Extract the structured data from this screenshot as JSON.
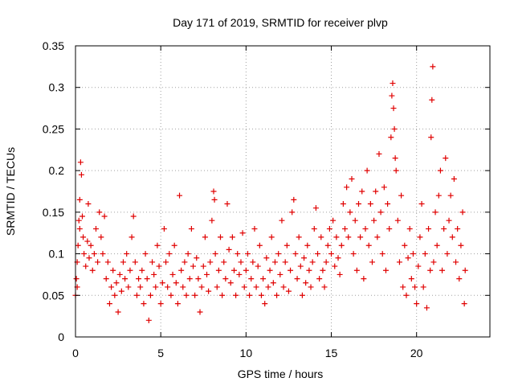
{
  "chart_data": {
    "type": "scatter",
    "title": "Day 171 of 2019, SRMTID for receiver plvp",
    "xlabel": "GPS time / hours",
    "ylabel": "SRMTID / TECUs",
    "xlim": [
      0,
      24.3
    ],
    "ylim": [
      0,
      0.35
    ],
    "xticks": [
      0,
      5,
      10,
      15,
      20
    ],
    "xtick_labels": [
      "0",
      "5",
      "10",
      "15",
      "20"
    ],
    "yticks": [
      0,
      0.05,
      0.1,
      0.15,
      0.2,
      0.25,
      0.3,
      0.35
    ],
    "ytick_labels": [
      "0",
      "0.05",
      "0.1",
      "0.15",
      "0.2",
      "0.25",
      "0.3",
      "0.35"
    ],
    "grid": true,
    "marker": "+",
    "color": "#e00000",
    "series": [
      {
        "name": "plvp",
        "points": [
          [
            0.0,
            0.05
          ],
          [
            0.05,
            0.07
          ],
          [
            0.1,
            0.09
          ],
          [
            0.1,
            0.06
          ],
          [
            0.15,
            0.11
          ],
          [
            0.2,
            0.14
          ],
          [
            0.25,
            0.13
          ],
          [
            0.25,
            0.165
          ],
          [
            0.3,
            0.21
          ],
          [
            0.35,
            0.195
          ],
          [
            0.4,
            0.145
          ],
          [
            0.45,
            0.12
          ],
          [
            0.5,
            0.1
          ],
          [
            0.6,
            0.085
          ],
          [
            0.7,
            0.115
          ],
          [
            0.75,
            0.16
          ],
          [
            0.8,
            0.095
          ],
          [
            0.9,
            0.11
          ],
          [
            1.0,
            0.08
          ],
          [
            1.1,
            0.1
          ],
          [
            1.2,
            0.13
          ],
          [
            1.3,
            0.09
          ],
          [
            1.4,
            0.15
          ],
          [
            1.5,
            0.12
          ],
          [
            1.6,
            0.1
          ],
          [
            1.7,
            0.145
          ],
          [
            1.8,
            0.07
          ],
          [
            1.9,
            0.09
          ],
          [
            2.0,
            0.04
          ],
          [
            2.1,
            0.06
          ],
          [
            2.2,
            0.08
          ],
          [
            2.3,
            0.05
          ],
          [
            2.4,
            0.065
          ],
          [
            2.5,
            0.03
          ],
          [
            2.6,
            0.075
          ],
          [
            2.7,
            0.055
          ],
          [
            2.8,
            0.09
          ],
          [
            2.9,
            0.07
          ],
          [
            3.0,
            0.1
          ],
          [
            3.1,
            0.06
          ],
          [
            3.2,
            0.08
          ],
          [
            3.3,
            0.12
          ],
          [
            3.4,
            0.145
          ],
          [
            3.5,
            0.09
          ],
          [
            3.6,
            0.05
          ],
          [
            3.7,
            0.07
          ],
          [
            3.8,
            0.06
          ],
          [
            3.9,
            0.08
          ],
          [
            4.0,
            0.04
          ],
          [
            4.1,
            0.1
          ],
          [
            4.2,
            0.07
          ],
          [
            4.3,
            0.02
          ],
          [
            4.4,
            0.05
          ],
          [
            4.5,
            0.09
          ],
          [
            4.6,
            0.075
          ],
          [
            4.7,
            0.06
          ],
          [
            4.8,
            0.11
          ],
          [
            4.9,
            0.085
          ],
          [
            5.0,
            0.04
          ],
          [
            5.1,
            0.065
          ],
          [
            5.2,
            0.13
          ],
          [
            5.3,
            0.09
          ],
          [
            5.4,
            0.06
          ],
          [
            5.5,
            0.1
          ],
          [
            5.6,
            0.05
          ],
          [
            5.7,
            0.075
          ],
          [
            5.8,
            0.11
          ],
          [
            5.9,
            0.065
          ],
          [
            6.0,
            0.04
          ],
          [
            6.1,
            0.17
          ],
          [
            6.2,
            0.08
          ],
          [
            6.3,
            0.06
          ],
          [
            6.4,
            0.09
          ],
          [
            6.5,
            0.05
          ],
          [
            6.6,
            0.1
          ],
          [
            6.7,
            0.07
          ],
          [
            6.8,
            0.13
          ],
          [
            6.9,
            0.085
          ],
          [
            7.0,
            0.05
          ],
          [
            7.1,
            0.095
          ],
          [
            7.2,
            0.07
          ],
          [
            7.3,
            0.03
          ],
          [
            7.4,
            0.06
          ],
          [
            7.5,
            0.085
          ],
          [
            7.6,
            0.12
          ],
          [
            7.7,
            0.075
          ],
          [
            7.8,
            0.055
          ],
          [
            7.9,
            0.09
          ],
          [
            8.0,
            0.14
          ],
          [
            8.1,
            0.175
          ],
          [
            8.15,
            0.165
          ],
          [
            8.2,
            0.1
          ],
          [
            8.3,
            0.06
          ],
          [
            8.4,
            0.08
          ],
          [
            8.5,
            0.12
          ],
          [
            8.6,
            0.05
          ],
          [
            8.7,
            0.09
          ],
          [
            8.8,
            0.07
          ],
          [
            8.9,
            0.16
          ],
          [
            9.0,
            0.105
          ],
          [
            9.1,
            0.065
          ],
          [
            9.2,
            0.12
          ],
          [
            9.3,
            0.08
          ],
          [
            9.4,
            0.05
          ],
          [
            9.5,
            0.1
          ],
          [
            9.6,
            0.075
          ],
          [
            9.7,
            0.09
          ],
          [
            9.8,
            0.125
          ],
          [
            9.9,
            0.06
          ],
          [
            10.0,
            0.08
          ],
          [
            10.1,
            0.1
          ],
          [
            10.2,
            0.05
          ],
          [
            10.3,
            0.07
          ],
          [
            10.4,
            0.09
          ],
          [
            10.5,
            0.13
          ],
          [
            10.6,
            0.06
          ],
          [
            10.7,
            0.085
          ],
          [
            10.8,
            0.11
          ],
          [
            10.9,
            0.05
          ],
          [
            11.0,
            0.07
          ],
          [
            11.1,
            0.04
          ],
          [
            11.2,
            0.095
          ],
          [
            11.3,
            0.06
          ],
          [
            11.4,
            0.08
          ],
          [
            11.5,
            0.12
          ],
          [
            11.6,
            0.065
          ],
          [
            11.7,
            0.09
          ],
          [
            11.8,
            0.05
          ],
          [
            11.9,
            0.1
          ],
          [
            12.0,
            0.075
          ],
          [
            12.1,
            0.14
          ],
          [
            12.2,
            0.06
          ],
          [
            12.3,
            0.09
          ],
          [
            12.4,
            0.11
          ],
          [
            12.5,
            0.055
          ],
          [
            12.6,
            0.08
          ],
          [
            12.7,
            0.15
          ],
          [
            12.8,
            0.165
          ],
          [
            12.9,
            0.1
          ],
          [
            13.0,
            0.07
          ],
          [
            13.1,
            0.12
          ],
          [
            13.2,
            0.085
          ],
          [
            13.3,
            0.05
          ],
          [
            13.4,
            0.095
          ],
          [
            13.5,
            0.065
          ],
          [
            13.6,
            0.11
          ],
          [
            13.7,
            0.08
          ],
          [
            13.8,
            0.06
          ],
          [
            13.9,
            0.09
          ],
          [
            14.0,
            0.13
          ],
          [
            14.1,
            0.155
          ],
          [
            14.2,
            0.1
          ],
          [
            14.3,
            0.07
          ],
          [
            14.4,
            0.12
          ],
          [
            14.5,
            0.08
          ],
          [
            14.6,
            0.06
          ],
          [
            14.7,
            0.09
          ],
          [
            14.8,
            0.11
          ],
          [
            14.9,
            0.13
          ],
          [
            15.0,
            0.1
          ],
          [
            15.1,
            0.14
          ],
          [
            15.2,
            0.085
          ],
          [
            15.3,
            0.12
          ],
          [
            15.4,
            0.095
          ],
          [
            15.5,
            0.075
          ],
          [
            15.6,
            0.11
          ],
          [
            15.7,
            0.16
          ],
          [
            15.8,
            0.13
          ],
          [
            15.9,
            0.18
          ],
          [
            16.0,
            0.12
          ],
          [
            16.1,
            0.15
          ],
          [
            16.2,
            0.19
          ],
          [
            16.3,
            0.1
          ],
          [
            16.4,
            0.14
          ],
          [
            16.5,
            0.08
          ],
          [
            16.6,
            0.16
          ],
          [
            16.7,
            0.12
          ],
          [
            16.8,
            0.175
          ],
          [
            16.9,
            0.07
          ],
          [
            17.0,
            0.13
          ],
          [
            17.1,
            0.2
          ],
          [
            17.2,
            0.11
          ],
          [
            17.3,
            0.16
          ],
          [
            17.4,
            0.09
          ],
          [
            17.5,
            0.14
          ],
          [
            17.6,
            0.175
          ],
          [
            17.7,
            0.12
          ],
          [
            17.8,
            0.22
          ],
          [
            17.9,
            0.15
          ],
          [
            18.0,
            0.1
          ],
          [
            18.1,
            0.18
          ],
          [
            18.2,
            0.08
          ],
          [
            18.3,
            0.16
          ],
          [
            18.4,
            0.13
          ],
          [
            18.5,
            0.24
          ],
          [
            18.55,
            0.29
          ],
          [
            18.6,
            0.305
          ],
          [
            18.65,
            0.275
          ],
          [
            18.7,
            0.25
          ],
          [
            18.75,
            0.215
          ],
          [
            18.8,
            0.2
          ],
          [
            18.9,
            0.14
          ],
          [
            19.0,
            0.09
          ],
          [
            19.1,
            0.17
          ],
          [
            19.2,
            0.06
          ],
          [
            19.3,
            0.11
          ],
          [
            19.4,
            0.05
          ],
          [
            19.5,
            0.095
          ],
          [
            19.6,
            0.13
          ],
          [
            19.7,
            0.07
          ],
          [
            19.8,
            0.1
          ],
          [
            19.9,
            0.06
          ],
          [
            20.0,
            0.04
          ],
          [
            20.1,
            0.085
          ],
          [
            20.2,
            0.12
          ],
          [
            20.3,
            0.16
          ],
          [
            20.4,
            0.06
          ],
          [
            20.5,
            0.1
          ],
          [
            20.6,
            0.035
          ],
          [
            20.7,
            0.13
          ],
          [
            20.8,
            0.08
          ],
          [
            20.85,
            0.24
          ],
          [
            20.9,
            0.285
          ],
          [
            20.95,
            0.325
          ],
          [
            21.0,
            0.09
          ],
          [
            21.1,
            0.15
          ],
          [
            21.2,
            0.11
          ],
          [
            21.3,
            0.17
          ],
          [
            21.4,
            0.2
          ],
          [
            21.5,
            0.08
          ],
          [
            21.6,
            0.13
          ],
          [
            21.7,
            0.215
          ],
          [
            21.8,
            0.1
          ],
          [
            21.9,
            0.14
          ],
          [
            22.0,
            0.17
          ],
          [
            22.1,
            0.12
          ],
          [
            22.2,
            0.19
          ],
          [
            22.3,
            0.09
          ],
          [
            22.4,
            0.13
          ],
          [
            22.5,
            0.07
          ],
          [
            22.6,
            0.11
          ],
          [
            22.7,
            0.15
          ],
          [
            22.8,
            0.04
          ],
          [
            22.85,
            0.08
          ]
        ]
      }
    ]
  }
}
